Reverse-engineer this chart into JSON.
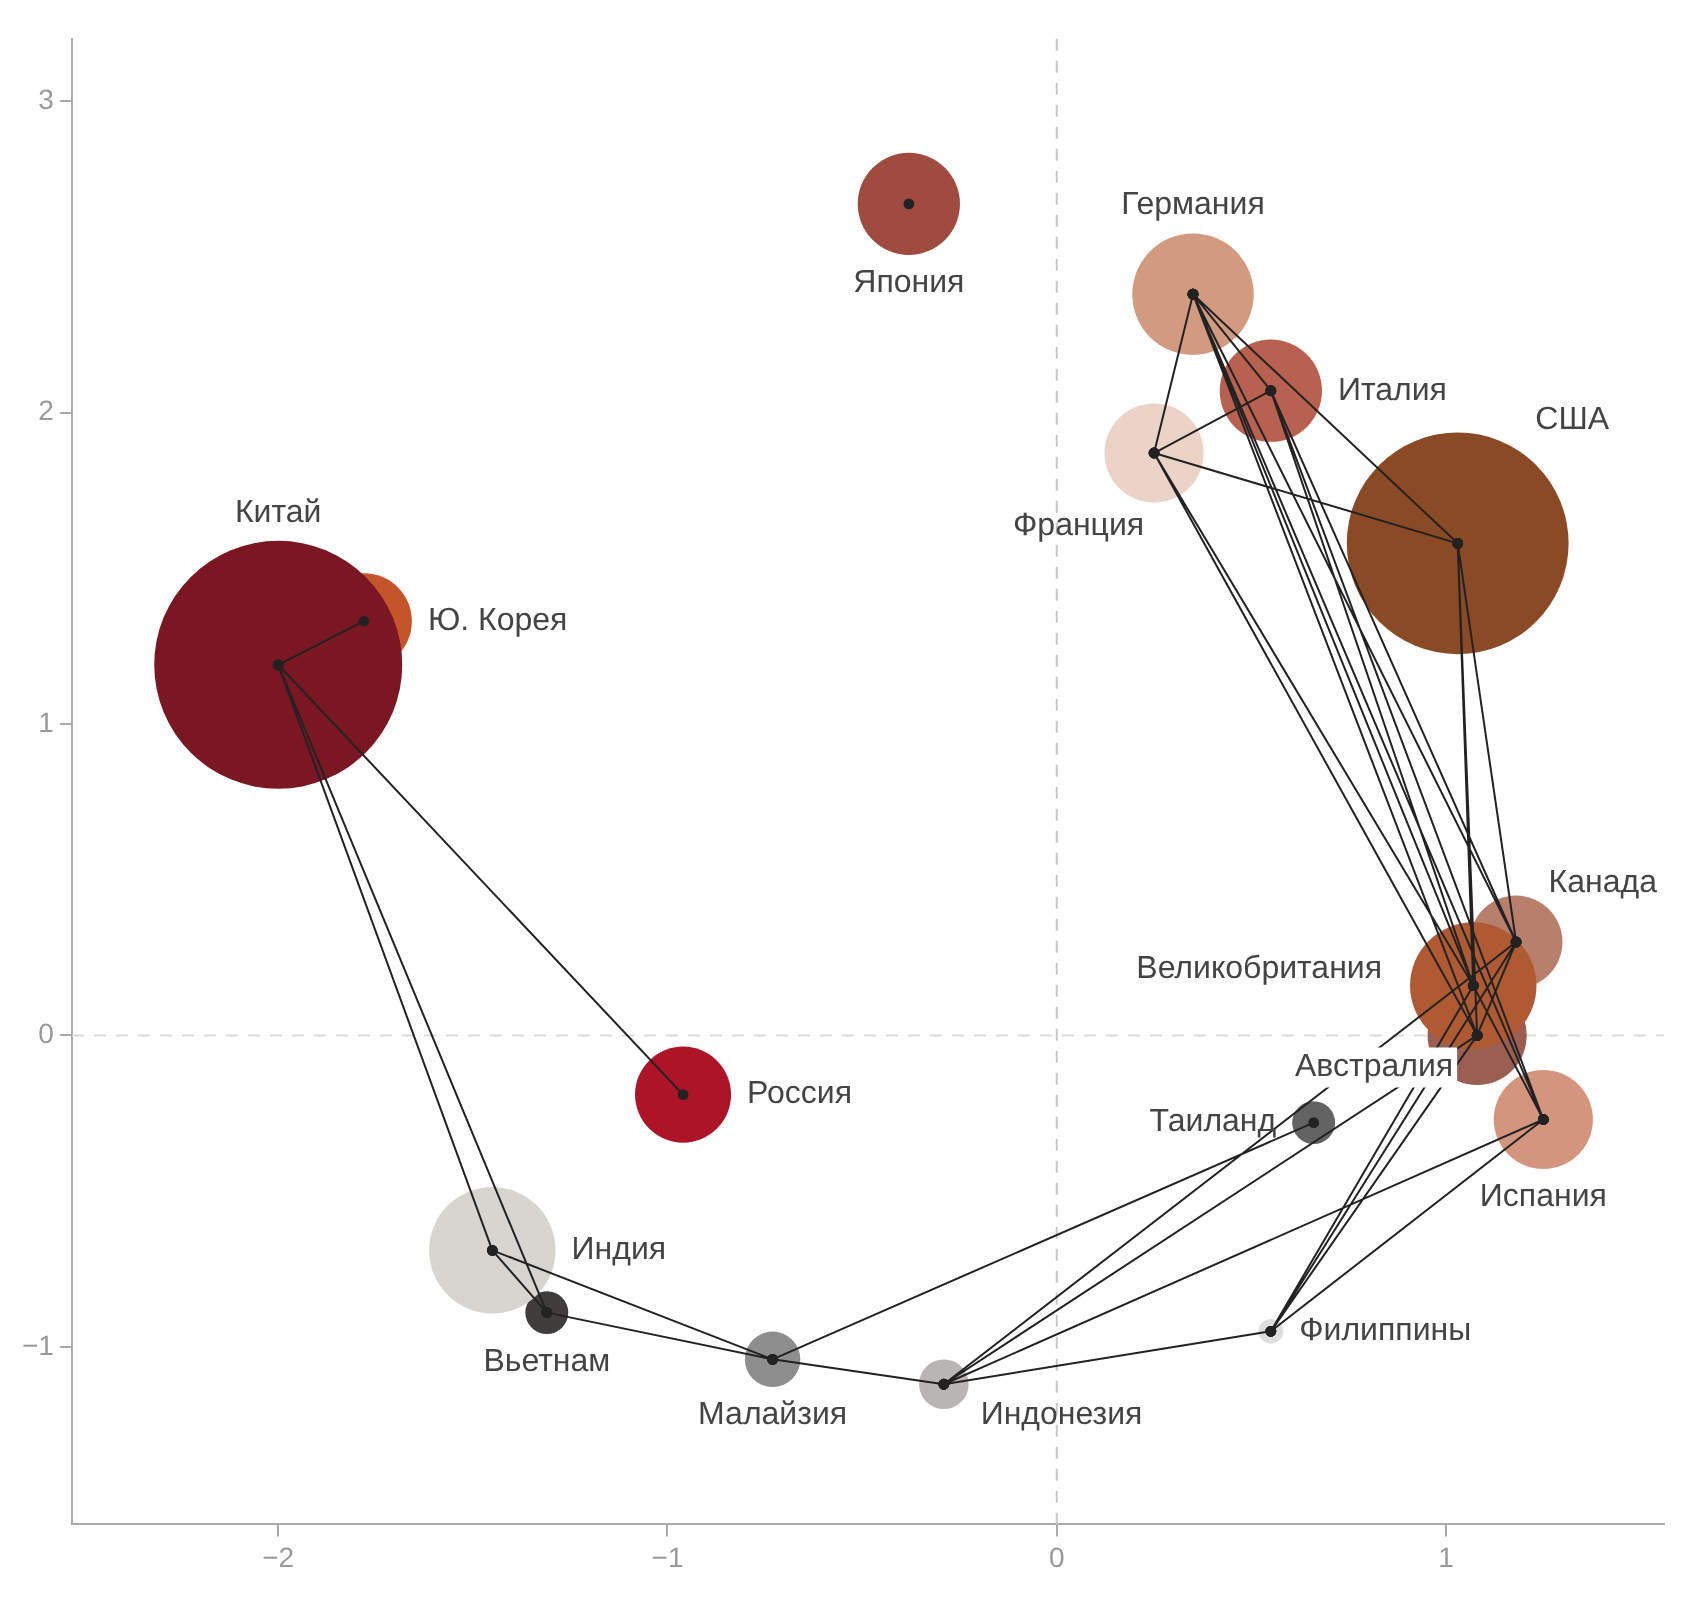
{
  "chart_data": {
    "type": "bubble",
    "series": [
      {
        "name": "Япония",
        "color": "#a04b40",
        "x": [
          -0.38
        ],
        "values": [
          2.67
        ],
        "sizes": [
          0.17
        ]
      },
      {
        "name": "Германия",
        "color": "#d29b80",
        "x": [
          0.35
        ],
        "values": [
          2.38
        ],
        "sizes": [
          0.24
        ]
      },
      {
        "name": "Италия",
        "color": "#b86150",
        "x": [
          0.55
        ],
        "values": [
          2.07
        ],
        "sizes": [
          0.17
        ]
      },
      {
        "name": "Франция",
        "color": "#ebd3c8",
        "x": [
          0.25
        ],
        "values": [
          1.87
        ],
        "sizes": [
          0.16
        ]
      },
      {
        "name": "США",
        "color": "#8b4a26",
        "x": [
          1.03
        ],
        "values": [
          1.58
        ],
        "sizes": [
          0.8
        ]
      },
      {
        "name": "Китай",
        "color": "#7b1723",
        "x": [
          -2.0
        ],
        "values": [
          1.19
        ],
        "sizes": [
          1
        ]
      },
      {
        "name": "Ю. Корея",
        "color": "#c4552b",
        "x": [
          -1.78
        ],
        "values": [
          1.33
        ],
        "sizes": [
          0.15
        ]
      },
      {
        "name": "Россия",
        "color": "#ad1428",
        "x": [
          -0.96
        ],
        "values": [
          -0.19
        ],
        "sizes": [
          0.15
        ]
      },
      {
        "name": "Индия",
        "color": "#d6d5d0",
        "x": [
          -1.45
        ],
        "values": [
          -0.69
        ],
        "sizes": [
          0.26
        ]
      },
      {
        "name": "Вьетнам",
        "color": "#3f3d3b",
        "x": [
          -1.31
        ],
        "values": [
          -0.89
        ],
        "sizes": [
          0.03
        ]
      },
      {
        "name": "Малайзия",
        "color": "#8e8e8e",
        "x": [
          -0.73
        ],
        "values": [
          -1.04
        ],
        "sizes": [
          0.05
        ]
      },
      {
        "name": "Индонезия",
        "color": "#b8b5b2",
        "x": [
          -0.29
        ],
        "values": [
          -1.12
        ],
        "sizes": [
          0.04
        ]
      },
      {
        "name": "Филиппины",
        "color": "#dedede",
        "x": [
          0.55
        ],
        "values": [
          -0.95
        ],
        "sizes": [
          0.01
        ]
      },
      {
        "name": "Таиланд",
        "color": "#636363",
        "x": [
          0.66
        ],
        "values": [
          -0.28
        ],
        "sizes": [
          0.03
        ]
      },
      {
        "name": "Великобритания",
        "color": "#b05a33",
        "x": [
          1.07
        ],
        "values": [
          0.16
        ],
        "sizes": [
          0.26
        ]
      },
      {
        "name": "Канада",
        "color": "#b8806c",
        "x": [
          1.18
        ],
        "values": [
          0.3
        ],
        "sizes": [
          0.14
        ]
      },
      {
        "name": "Австралия",
        "color": "#9b5e52",
        "x": [
          1.08
        ],
        "values": [
          0.0
        ],
        "sizes": [
          0.16
        ]
      },
      {
        "name": "Испания",
        "color": "#d4957e",
        "x": [
          1.25
        ],
        "values": [
          -0.27
        ],
        "sizes": [
          0.16
        ]
      },
      {
        "type": "line",
        "color": "#222222",
        "marker": "circle",
        "line_style": "solid",
        "x": [
          -2.0,
          -1.78,
          null,
          -2.0,
          -0.96,
          null,
          -2.0,
          -1.45,
          null,
          -2.0,
          -1.31,
          null,
          -1.45,
          -1.31,
          null,
          -1.45,
          -0.73,
          null,
          -1.31,
          -0.73,
          null,
          -0.73,
          -0.29,
          null,
          -0.73,
          0.66,
          null,
          -0.29,
          1.08,
          null,
          -0.29,
          1.18,
          null,
          -0.29,
          1.25,
          null,
          -0.29,
          0.55,
          null,
          0.55,
          1.08,
          null,
          0.55,
          1.07,
          null,
          0.55,
          1.18,
          null,
          0.55,
          1.25,
          null,
          0.35,
          0.25,
          null,
          0.35,
          0.55,
          null,
          0.35,
          1.03,
          null,
          0.35,
          1.07,
          null,
          0.35,
          1.08,
          null,
          0.35,
          1.18,
          null,
          0.35,
          1.25,
          null,
          0.55,
          0.25,
          null,
          0.55,
          1.07,
          null,
          0.55,
          1.18,
          null,
          0.55,
          1.25,
          null,
          0.25,
          1.03,
          null,
          0.25,
          1.07,
          null,
          0.25,
          1.08,
          null,
          1.03,
          1.07,
          null,
          1.03,
          1.08,
          null,
          1.03,
          1.18,
          null,
          1.07,
          1.25,
          null,
          1.18,
          1.08,
          null,
          -0.38
        ],
        "values": [
          1.19,
          1.33,
          null,
          1.19,
          -0.19,
          null,
          1.19,
          -0.69,
          null,
          1.19,
          -0.89,
          null,
          -0.69,
          -0.89,
          null,
          -0.69,
          -1.04,
          null,
          -0.89,
          -1.04,
          null,
          -1.04,
          -1.12,
          null,
          -1.04,
          -0.28,
          null,
          -1.12,
          0.0,
          null,
          -1.12,
          0.3,
          null,
          -1.12,
          -0.27,
          null,
          -1.12,
          -0.95,
          null,
          -0.95,
          0.0,
          null,
          -0.95,
          0.16,
          null,
          -0.95,
          0.3,
          null,
          -0.95,
          -0.27,
          null,
          2.38,
          1.87,
          null,
          2.38,
          2.07,
          null,
          2.38,
          1.58,
          null,
          2.38,
          0.16,
          null,
          2.38,
          0.0,
          null,
          2.38,
          0.3,
          null,
          2.38,
          -0.27,
          null,
          2.07,
          1.87,
          null,
          2.07,
          0.16,
          null,
          2.07,
          0.3,
          null,
          2.07,
          -0.27,
          null,
          1.87,
          1.58,
          null,
          1.87,
          0.16,
          null,
          1.87,
          0.0,
          null,
          1.58,
          0.16,
          null,
          1.58,
          0.0,
          null,
          1.58,
          0.3,
          null,
          0.16,
          -0.27,
          null,
          0.3,
          0.0,
          null,
          2.67
        ]
      }
    ],
    "xlim": [
      -2.53,
      1.56
    ],
    "ylim": [
      -1.57,
      3.2
    ],
    "xticks": [
      {
        "value": -2,
        "label": "−2"
      },
      {
        "value": -1,
        "label": "−1"
      },
      0,
      1
    ],
    "yticks": [
      {
        "value": -1,
        "label": "−1"
      },
      0,
      1,
      2,
      3
    ],
    "grid": false,
    "legend": false,
    "ref_lines": [
      {
        "axis": "x",
        "value": 0,
        "color": "#c8c8c8",
        "line_style": "dashed"
      },
      {
        "axis": "y",
        "value": 0,
        "color": "#dcdcdc",
        "line_style": "dashed"
      }
    ]
  }
}
